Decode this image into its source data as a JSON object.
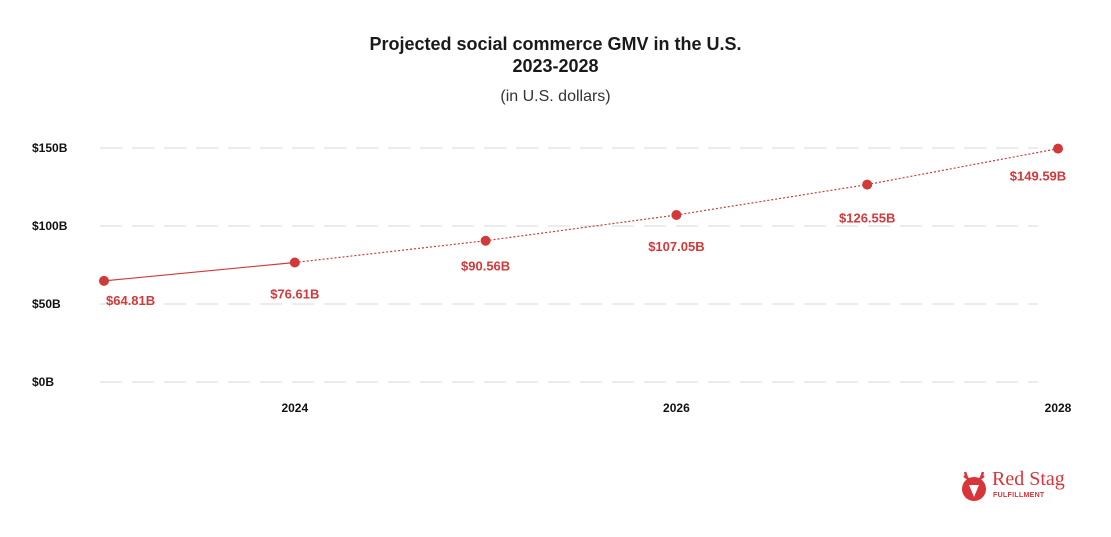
{
  "chart_data": {
    "type": "line",
    "title_line1": "Projected social commerce GMV in the U.S.",
    "title_line2": "2023-2028",
    "subtitle": "(in U.S. dollars)",
    "x": [
      2023,
      2024,
      2025,
      2026,
      2027,
      2028
    ],
    "x_tick_labels": [
      "2024",
      "2026",
      "2028"
    ],
    "x_ticks": [
      2024,
      2026,
      2028
    ],
    "y_tick_labels": [
      "$0B",
      "$50B",
      "$100B",
      "$150B"
    ],
    "y_ticks": [
      0,
      50,
      100,
      150
    ],
    "ylim": [
      0,
      150
    ],
    "xlim": [
      2023,
      2028
    ],
    "grid": true,
    "series": [
      {
        "values": [
          64.81,
          76.61,
          90.56,
          107.05,
          126.55,
          149.59
        ],
        "labels": [
          "$64.81B",
          "$76.61B",
          "$90.56B",
          "$107.05B",
          "$126.55B",
          "$149.59B"
        ],
        "color": "#d23a3a",
        "line_style": "solid through 2024, dotted after"
      }
    ]
  },
  "logo": {
    "name": "Red Stag",
    "tagline": "FULFILLMENT",
    "color": "#d8343a"
  }
}
